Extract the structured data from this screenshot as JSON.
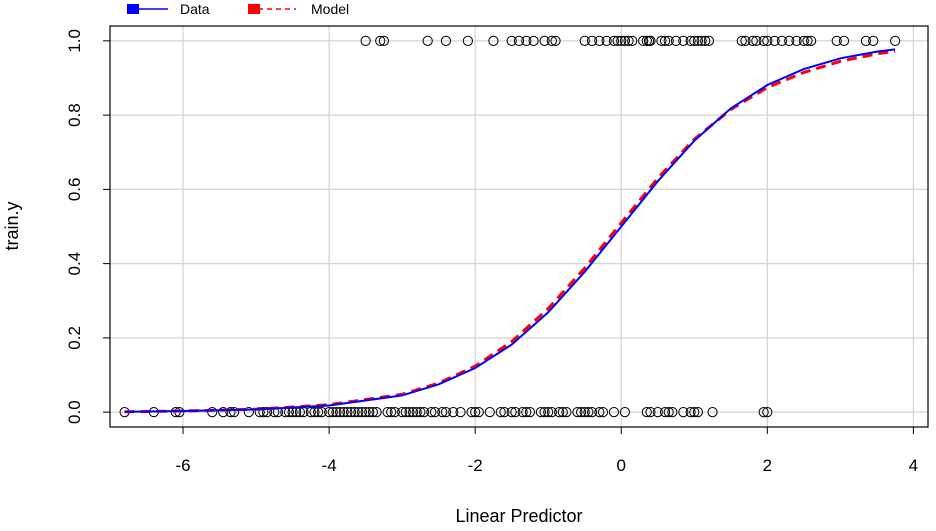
{
  "chart_data": {
    "type": "scatter",
    "title": "",
    "xlabel": "Linear Predictor",
    "ylabel": "train.y",
    "xlim": [
      -7.0,
      4.2
    ],
    "ylim": [
      -0.04,
      1.04
    ],
    "xticks": [
      -6,
      -4,
      -2,
      0,
      2,
      4
    ],
    "xtick_labels": [
      "-6",
      "-4",
      "-2",
      "0",
      "2",
      "4"
    ],
    "yticks": [
      0.0,
      0.2,
      0.4,
      0.6,
      0.8,
      1.0
    ],
    "ytick_labels": [
      "0.0",
      "0.2",
      "0.4",
      "0.6",
      "0.8",
      "1.0"
    ],
    "grid": true,
    "legend": {
      "placement": "top-left",
      "entries": [
        {
          "label": "Data",
          "color": "#0000ff",
          "style": "solid"
        },
        {
          "label": "Model",
          "color": "#ff0000",
          "style": "dashed"
        }
      ]
    },
    "points_y0": [
      -6.8,
      -6.4,
      -6.1,
      -6.05,
      -5.6,
      -5.45,
      -5.35,
      -5.3,
      -5.1,
      -4.95,
      -4.9,
      -4.85,
      -4.75,
      -4.7,
      -4.6,
      -4.55,
      -4.5,
      -4.45,
      -4.4,
      -4.35,
      -4.25,
      -4.2,
      -4.15,
      -4.1,
      -4.0,
      -3.95,
      -3.9,
      -3.85,
      -3.8,
      -3.75,
      -3.7,
      -3.65,
      -3.6,
      -3.55,
      -3.5,
      -3.45,
      -3.4,
      -3.35,
      -3.2,
      -3.15,
      -3.1,
      -3.0,
      -2.95,
      -2.9,
      -2.85,
      -2.8,
      -2.75,
      -2.7,
      -2.6,
      -2.55,
      -2.45,
      -2.4,
      -2.3,
      -2.2,
      -2.05,
      -2.0,
      -1.95,
      -1.8,
      -1.65,
      -1.6,
      -1.5,
      -1.45,
      -1.35,
      -1.3,
      -1.25,
      -1.1,
      -1.05,
      -1.0,
      -0.95,
      -0.85,
      -0.8,
      -0.75,
      -0.6,
      -0.55,
      -0.5,
      -0.45,
      -0.4,
      -0.3,
      -0.25,
      -0.1,
      0.05,
      0.35,
      0.4,
      0.5,
      0.6,
      0.65,
      0.7,
      0.85,
      0.95,
      1.0,
      1.05,
      1.25,
      1.95,
      2.0
    ],
    "points_y1": [
      -3.5,
      -3.3,
      -3.25,
      -2.65,
      -2.4,
      -2.1,
      -1.75,
      -1.5,
      -1.4,
      -1.3,
      -1.2,
      -1.05,
      -0.95,
      -0.9,
      -0.5,
      -0.4,
      -0.3,
      -0.2,
      -0.1,
      -0.05,
      0.0,
      0.05,
      0.1,
      0.15,
      0.3,
      0.35,
      0.38,
      0.4,
      0.55,
      0.6,
      0.65,
      0.75,
      0.85,
      0.95,
      1.0,
      1.05,
      1.1,
      1.15,
      1.2,
      1.65,
      1.7,
      1.8,
      1.85,
      1.95,
      2.0,
      2.1,
      2.2,
      2.3,
      2.4,
      2.5,
      2.55,
      2.6,
      2.95,
      3.05,
      3.35,
      3.45,
      3.75
    ],
    "series": [
      {
        "name": "Data",
        "color": "#0000ff",
        "style": "solid",
        "x": [
          -6.8,
          -6.0,
          -5.0,
          -4.0,
          -3.0,
          -2.5,
          -2.0,
          -1.5,
          -1.0,
          -0.5,
          0.0,
          0.5,
          1.0,
          1.5,
          2.0,
          2.5,
          3.0,
          3.5,
          3.75
        ],
        "y": [
          0.001,
          0.003,
          0.007,
          0.018,
          0.045,
          0.075,
          0.119,
          0.182,
          0.269,
          0.378,
          0.5,
          0.622,
          0.731,
          0.818,
          0.881,
          0.924,
          0.953,
          0.971,
          0.977
        ]
      },
      {
        "name": "Model",
        "color": "#ff0000",
        "style": "dashed",
        "x": [
          -6.8,
          -6.0,
          -5.0,
          -4.0,
          -3.0,
          -2.5,
          -2.0,
          -1.5,
          -1.0,
          -0.5,
          0.0,
          0.5,
          1.0,
          1.5,
          2.0,
          2.5,
          3.0,
          3.5,
          3.75
        ],
        "y": [
          0.001,
          0.003,
          0.008,
          0.02,
          0.048,
          0.078,
          0.124,
          0.19,
          0.279,
          0.388,
          0.51,
          0.63,
          0.735,
          0.815,
          0.874,
          0.915,
          0.945,
          0.965,
          0.972
        ]
      }
    ]
  }
}
